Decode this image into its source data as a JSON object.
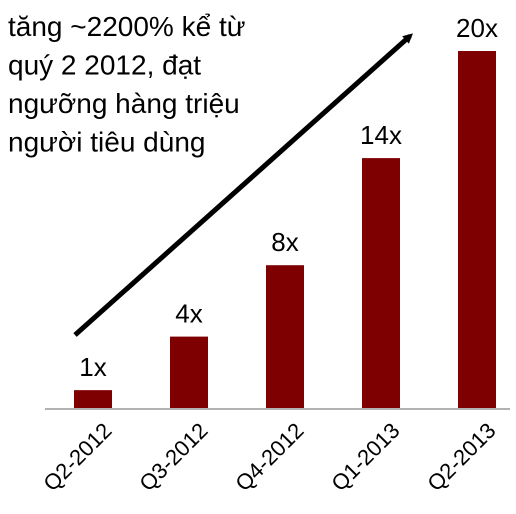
{
  "chart_data": {
    "type": "bar",
    "annotation": [
      "tăng ~2200% kể từ",
      "quý 2 2012, đạt",
      "ngưỡng hàng triệu",
      "người tiêu dùng"
    ],
    "categories": [
      "Q2-2012",
      "Q3-2012",
      "Q4-2012",
      "Q1-2013",
      "Q2-2013"
    ],
    "values": [
      1,
      4,
      8,
      14,
      20
    ],
    "value_labels": [
      "1x",
      "4x",
      "8x",
      "14x",
      "20x"
    ],
    "color": "#7f0000"
  }
}
